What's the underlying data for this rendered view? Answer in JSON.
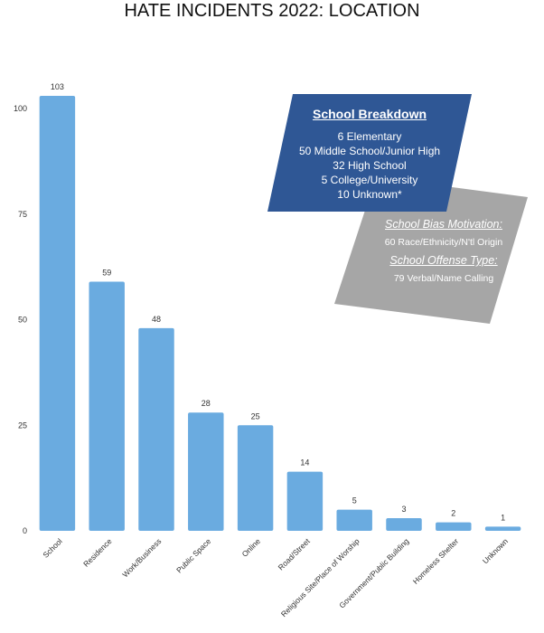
{
  "title": "HATE INCIDENTS 2022: LOCATION",
  "colors": {
    "bar": "#6aabe0",
    "axis_text": "#333333",
    "callout_blue": "#2f5795",
    "callout_gray": "#a6a6a6"
  },
  "school_breakdown": {
    "heading": "School Breakdown",
    "lines": [
      "6 Elementary",
      "50 Middle School/Junior High",
      "32 High School",
      "5 College/University",
      "10 Unknown*"
    ]
  },
  "school_details": {
    "bias_heading": "School Bias Motivation:",
    "bias_value": "60 Race/Ethnicity/N'tl Origin",
    "offense_heading": "School Offense Type:",
    "offense_value": "79 Verbal/Name Calling"
  },
  "chart_data": {
    "type": "bar",
    "title": "HATE INCIDENTS 2022: LOCATION",
    "xlabel": "",
    "ylabel": "",
    "categories": [
      "School",
      "Residence",
      "Work/Business",
      "Public Space",
      "Online",
      "Road/Street",
      "Religious Site/Place of Worship",
      "Government/Public Building",
      "Homeless Shelter",
      "Unknown"
    ],
    "values": [
      103,
      59,
      48,
      28,
      25,
      14,
      5,
      3,
      2,
      1
    ],
    "yticks": [
      0,
      25,
      50,
      75,
      100
    ],
    "ylim": [
      0,
      108
    ],
    "grid": false,
    "legend": "none",
    "data_labels": true
  }
}
